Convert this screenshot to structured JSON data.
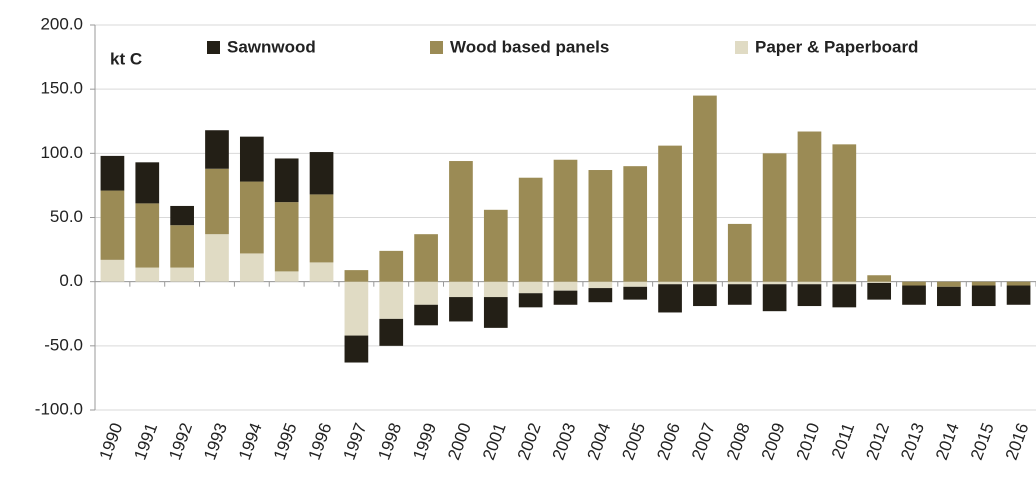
{
  "chart_data": {
    "type": "bar",
    "stacked": true,
    "annotation": "kt C",
    "categories": [
      "1990",
      "1991",
      "1992",
      "1993",
      "1994",
      "1995",
      "1996",
      "1997",
      "1998",
      "1999",
      "2000",
      "2001",
      "2002",
      "2003",
      "2004",
      "2005",
      "2006",
      "2007",
      "2008",
      "2009",
      "2010",
      "2011",
      "2012",
      "2013",
      "2014",
      "2015",
      "2016"
    ],
    "series": [
      {
        "name": "Sawnwood",
        "color": "#231f16",
        "values": [
          27,
          32,
          15,
          30,
          35,
          34,
          33,
          -21,
          -21,
          -16,
          -19,
          -24,
          -11,
          -11,
          -11,
          -10,
          -22,
          -17,
          -16,
          -21,
          -17,
          -18,
          -13,
          -15,
          -15,
          -16,
          -15
        ]
      },
      {
        "name": "Wood based panels",
        "color": "#9b8b55",
        "values": [
          54,
          50,
          33,
          51,
          56,
          54,
          53,
          9,
          24,
          37,
          94,
          56,
          81,
          95,
          87,
          90,
          106,
          145,
          45,
          100,
          117,
          107,
          5,
          -3,
          -4,
          -3,
          -3
        ]
      },
      {
        "name": "Paper & Paperboard",
        "color": "#e0dbc4",
        "values": [
          17,
          11,
          11,
          37,
          22,
          8,
          15,
          -42,
          -29,
          -18,
          -12,
          -12,
          -9,
          -7,
          -5,
          -4,
          -2,
          -2,
          -2,
          -2,
          -2,
          -2,
          -1,
          0,
          0,
          0,
          0
        ]
      }
    ],
    "ylim": [
      -100,
      200
    ],
    "yticks": [
      {
        "value": -100,
        "label": "-100.0"
      },
      {
        "value": -50,
        "label": "-50.0"
      },
      {
        "value": 0,
        "label": "0.0"
      },
      {
        "value": 50,
        "label": "50.0"
      },
      {
        "value": 100,
        "label": "100.0"
      },
      {
        "value": 150,
        "label": "150.0"
      },
      {
        "value": 200,
        "label": "200.0"
      }
    ],
    "grid": true
  }
}
